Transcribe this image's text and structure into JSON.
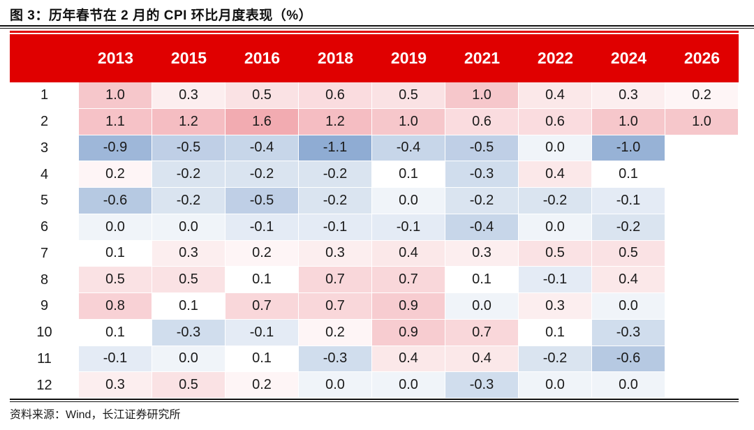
{
  "header": {
    "title": "图 3：历年春节在 2 月的 CPI 环比月度表现（%）"
  },
  "footer": {
    "source_note": "资料来源：Wind，长江证券研究所"
  },
  "colors": {
    "header_bg": "#E00000",
    "header_text": "#FFFFFF",
    "positive_max": "#F2ABB1",
    "negative_min": "#8FACD3",
    "neutral": "#FFFFFF",
    "text": "#1A1A1A"
  },
  "chart_data": {
    "type": "heatmap",
    "title": "历年春节在 2 月的 CPI 环比月度表现（%）",
    "columns": [
      "2013",
      "2015",
      "2016",
      "2018",
      "2019",
      "2021",
      "2022",
      "2024",
      "2026"
    ],
    "row_label_header": "",
    "rows": [
      {
        "month": "1",
        "values": [
          1.0,
          0.3,
          0.5,
          0.6,
          0.5,
          1.0,
          0.4,
          0.3,
          0.2
        ]
      },
      {
        "month": "2",
        "values": [
          1.1,
          1.2,
          1.6,
          1.2,
          1.0,
          0.6,
          0.6,
          1.0,
          1.0
        ]
      },
      {
        "month": "3",
        "values": [
          -0.9,
          -0.5,
          -0.4,
          -1.1,
          -0.4,
          -0.5,
          0.0,
          -1.0,
          null
        ]
      },
      {
        "month": "4",
        "values": [
          0.2,
          -0.2,
          -0.2,
          -0.2,
          0.1,
          -0.3,
          0.4,
          0.1,
          null
        ]
      },
      {
        "month": "5",
        "values": [
          -0.6,
          -0.2,
          -0.5,
          -0.2,
          0.0,
          -0.2,
          -0.2,
          -0.1,
          null
        ]
      },
      {
        "month": "6",
        "values": [
          0.0,
          0.0,
          -0.1,
          -0.1,
          -0.1,
          -0.4,
          0.0,
          -0.2,
          null
        ]
      },
      {
        "month": "7",
        "values": [
          0.1,
          0.3,
          0.2,
          0.3,
          0.4,
          0.3,
          0.5,
          0.5,
          null
        ]
      },
      {
        "month": "8",
        "values": [
          0.5,
          0.5,
          0.1,
          0.7,
          0.7,
          0.1,
          -0.1,
          0.4,
          null
        ]
      },
      {
        "month": "9",
        "values": [
          0.8,
          0.1,
          0.7,
          0.7,
          0.9,
          0.0,
          0.3,
          0.0,
          null
        ]
      },
      {
        "month": "10",
        "values": [
          0.1,
          -0.3,
          -0.1,
          0.2,
          0.9,
          0.7,
          0.1,
          -0.3,
          null
        ]
      },
      {
        "month": "11",
        "values": [
          -0.1,
          0.0,
          0.1,
          -0.3,
          0.4,
          0.4,
          -0.2,
          -0.6,
          null
        ]
      },
      {
        "month": "12",
        "values": [
          0.3,
          0.5,
          0.2,
          0.0,
          0.0,
          -0.3,
          0.0,
          0.0,
          null
        ]
      }
    ],
    "value_format": "one_decimal",
    "scale": {
      "min": -1.1,
      "mid": 0.1,
      "max": 1.6
    },
    "legend_position": "none",
    "grid": false
  }
}
